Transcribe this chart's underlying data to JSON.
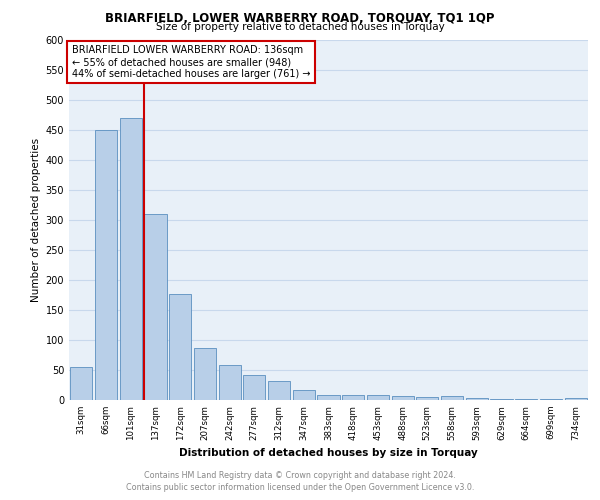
{
  "title1": "BRIARFIELD, LOWER WARBERRY ROAD, TORQUAY, TQ1 1QP",
  "title2": "Size of property relative to detached houses in Torquay",
  "xlabel": "Distribution of detached houses by size in Torquay",
  "ylabel": "Number of detached properties",
  "footer1": "Contains HM Land Registry data © Crown copyright and database right 2024.",
  "footer2": "Contains public sector information licensed under the Open Government Licence v3.0.",
  "bar_labels": [
    "31sqm",
    "66sqm",
    "101sqm",
    "137sqm",
    "172sqm",
    "207sqm",
    "242sqm",
    "277sqm",
    "312sqm",
    "347sqm",
    "383sqm",
    "418sqm",
    "453sqm",
    "488sqm",
    "523sqm",
    "558sqm",
    "593sqm",
    "629sqm",
    "664sqm",
    "699sqm",
    "734sqm"
  ],
  "bar_values": [
    55,
    450,
    470,
    310,
    176,
    87,
    58,
    42,
    32,
    16,
    9,
    8,
    8,
    6,
    5,
    7,
    3,
    1,
    1,
    1,
    4
  ],
  "bar_color": "#b8cfe8",
  "bar_edge_color": "#5a8fc0",
  "highlight_index": 3,
  "highlight_line_color": "#cc0000",
  "annotation_text": "BRIARFIELD LOWER WARBERRY ROAD: 136sqm\n← 55% of detached houses are smaller (948)\n44% of semi-detached houses are larger (761) →",
  "annotation_box_color": "#ffffff",
  "annotation_box_edge": "#cc0000",
  "ylim": [
    0,
    600
  ],
  "yticks": [
    0,
    50,
    100,
    150,
    200,
    250,
    300,
    350,
    400,
    450,
    500,
    550,
    600
  ],
  "grid_color": "#c8d8ec",
  "background_color": "#ffffff",
  "plot_bg_color": "#e8f0f8"
}
